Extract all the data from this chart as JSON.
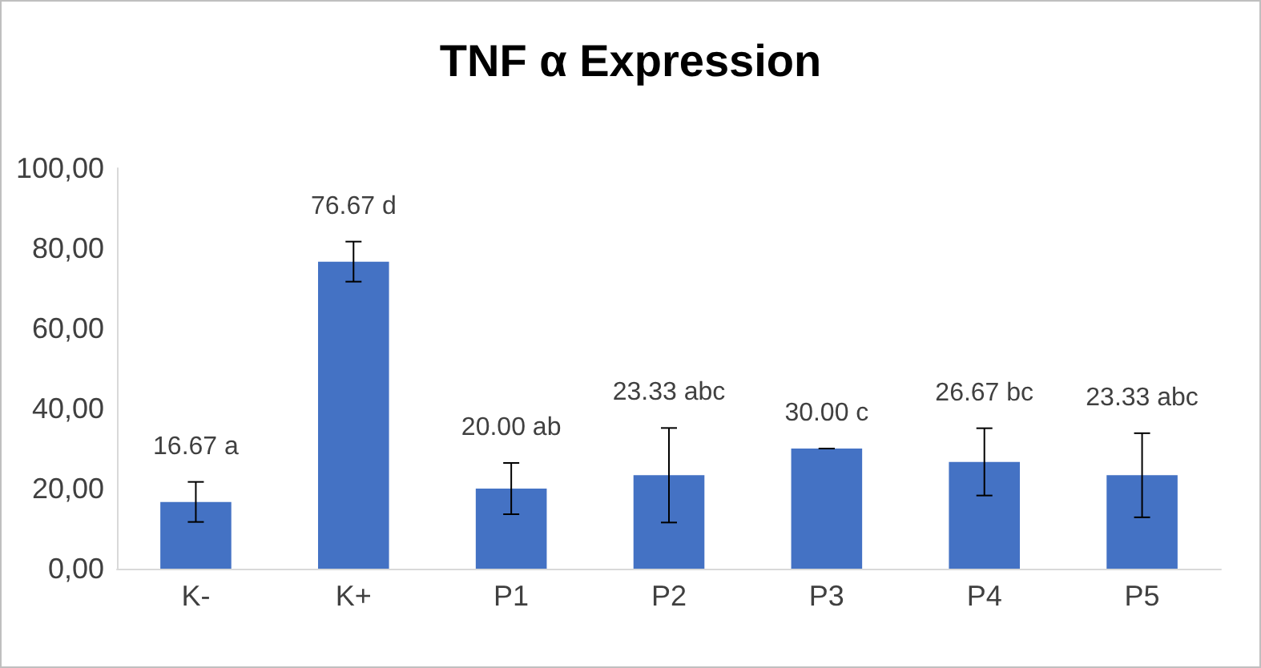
{
  "chart_data": {
    "type": "bar",
    "title": "TNF α Expression",
    "categories": [
      "K-",
      "K+",
      "P1",
      "P2",
      "P3",
      "P4",
      "P5"
    ],
    "values": [
      16.67,
      76.67,
      20.0,
      23.33,
      30.0,
      26.67,
      23.33
    ],
    "errors": [
      5,
      5,
      6.4,
      11.8,
      0,
      8.4,
      10.5
    ],
    "value_labels": [
      "16.67 a",
      "76.67 d",
      "20.00 ab",
      "23.33 abc",
      "30.00 c",
      "26.67 bc",
      "23.33 abc"
    ],
    "color": "#4472c4",
    "ylim": [
      0,
      100
    ],
    "yticks": [
      {
        "value": 0,
        "label": "0,00"
      },
      {
        "value": 20,
        "label": "20,00"
      },
      {
        "value": 40,
        "label": "40,00"
      },
      {
        "value": 60,
        "label": "60,00"
      },
      {
        "value": 80,
        "label": "80,00"
      },
      {
        "value": 100,
        "label": "100,00"
      }
    ],
    "grid": false
  }
}
